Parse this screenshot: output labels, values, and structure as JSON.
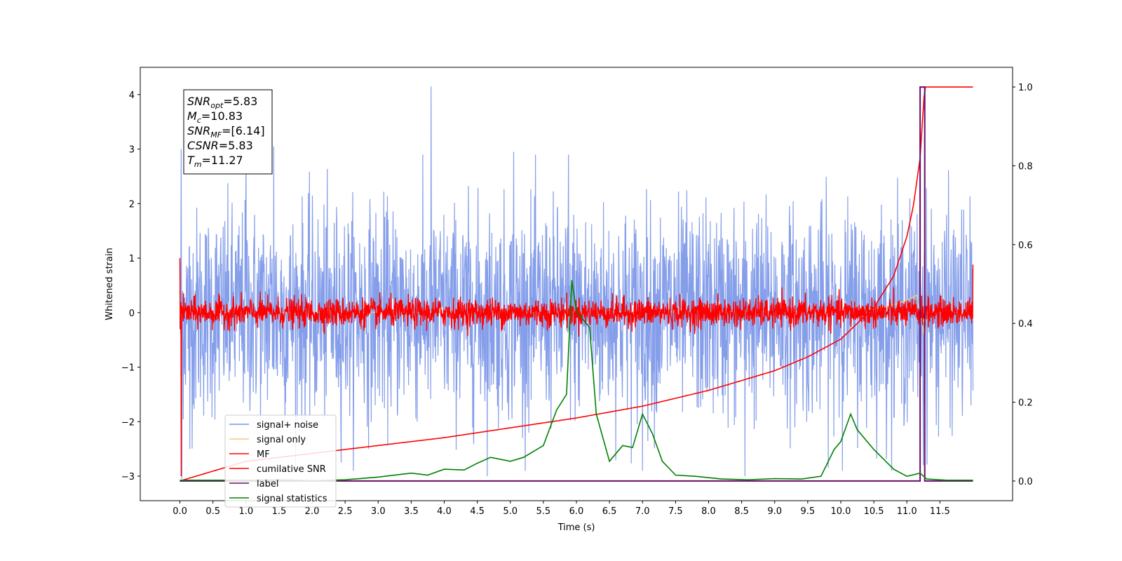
{
  "chart_data": {
    "type": "line",
    "title": "",
    "xlabel": "Time (s)",
    "ylabel": "Whitened strain",
    "y2label": "",
    "xlim": [
      -0.6,
      12.6
    ],
    "ylim": [
      -3.45,
      4.5
    ],
    "y2lim": [
      -0.05,
      1.05
    ],
    "x_ticks": [
      0.0,
      0.5,
      1.0,
      1.5,
      2.0,
      2.5,
      3.0,
      3.5,
      4.0,
      4.5,
      5.0,
      5.5,
      6.0,
      6.5,
      7.0,
      7.5,
      8.0,
      8.5,
      9.0,
      9.5,
      10.0,
      10.5,
      11.0,
      11.5
    ],
    "x_tick_labels": [
      "0.0",
      "0.5",
      "1.0",
      "1.5",
      "2.0",
      "2.5",
      "3.0",
      "3.5",
      "4.0",
      "4.5",
      "5.0",
      "5.5",
      "6.0",
      "6.5",
      "7.0",
      "7.5",
      "8.0",
      "8.5",
      "9.0",
      "9.5",
      "10.0",
      "10.5",
      "11.0",
      "11.5"
    ],
    "y_ticks": [
      -3,
      -2,
      -1,
      0,
      1,
      2,
      3,
      4
    ],
    "y_tick_labels": [
      "−3",
      "−2",
      "−1",
      "0",
      "1",
      "2",
      "3",
      "4"
    ],
    "y2_ticks": [
      0.0,
      0.2,
      0.4,
      0.6,
      0.8,
      1.0
    ],
    "y2_tick_labels": [
      "0.0",
      "0.2",
      "0.4",
      "0.6",
      "0.8",
      "1.0"
    ],
    "grid": false,
    "legend_position": "lower-left",
    "annotation": {
      "lines": [
        {
          "base": "SNR",
          "sub": "opt",
          "value": "=5.83"
        },
        {
          "base": "M",
          "sub": "c",
          "value": "=10.83"
        },
        {
          "base": "SNR",
          "sub": "MF",
          "value": "=[6.14]"
        },
        {
          "base": "CSNR",
          "sub": "",
          "value": "=5.83"
        },
        {
          "base": "T",
          "sub": "m",
          "value": "=11.27"
        }
      ]
    },
    "series": [
      {
        "name": "signal+ noise",
        "axis": "left",
        "color": "#7893e8",
        "x_range": [
          0.0,
          12.0
        ],
        "amplitude_typical": 1.3,
        "extremes": [
          {
            "x": 0.02,
            "y": 3.0
          },
          {
            "x": 0.03,
            "y": -3.05
          },
          {
            "x": 0.15,
            "y": -2.5
          },
          {
            "x": 1.0,
            "y": 3.0
          },
          {
            "x": 1.42,
            "y": 3.05
          },
          {
            "x": 3.8,
            "y": 4.15
          },
          {
            "x": 4.65,
            "y": -3.0
          },
          {
            "x": 5.05,
            "y": 2.95
          },
          {
            "x": 5.88,
            "y": 2.9
          },
          {
            "x": 7.0,
            "y": -2.9
          },
          {
            "x": 8.55,
            "y": -3.0
          },
          {
            "x": 11.2,
            "y": 2.85
          },
          {
            "x": 11.25,
            "y": -2.8
          }
        ]
      },
      {
        "name": "signal only",
        "axis": "left",
        "color": "#f5c87a",
        "points": [
          [
            0.0,
            0.0
          ],
          [
            10.0,
            0.02
          ],
          [
            10.6,
            0.08
          ],
          [
            11.0,
            0.22
          ],
          [
            11.15,
            0.32
          ],
          [
            11.27,
            -0.45
          ],
          [
            11.3,
            0.0
          ],
          [
            12.0,
            0.0
          ]
        ]
      },
      {
        "name": "MF",
        "axis": "left",
        "color": "#ff0000",
        "amplitude_typical": 0.22,
        "peaks": [
          {
            "x": 0.0,
            "y": 1.0
          },
          {
            "x": 0.03,
            "y": -3.0
          },
          {
            "x": 12.0,
            "y": 0.88
          }
        ]
      },
      {
        "name": "cumilative SNR",
        "axis": "right",
        "color": "#ff0000",
        "points": [
          [
            0.0,
            0.0
          ],
          [
            1.0,
            0.05
          ],
          [
            2.0,
            0.07
          ],
          [
            3.0,
            0.09
          ],
          [
            4.0,
            0.11
          ],
          [
            5.0,
            0.135
          ],
          [
            6.0,
            0.16
          ],
          [
            7.0,
            0.19
          ],
          [
            8.0,
            0.23
          ],
          [
            9.0,
            0.28
          ],
          [
            9.5,
            0.315
          ],
          [
            10.0,
            0.36
          ],
          [
            10.5,
            0.44
          ],
          [
            10.8,
            0.52
          ],
          [
            11.0,
            0.62
          ],
          [
            11.1,
            0.7
          ],
          [
            11.2,
            0.82
          ],
          [
            11.27,
            1.0
          ],
          [
            12.0,
            1.0
          ]
        ]
      },
      {
        "name": "label",
        "axis": "right",
        "color": "#6a0c6a",
        "points": [
          [
            0.0,
            0.0
          ],
          [
            11.2,
            0.0
          ],
          [
            11.2,
            1.0
          ],
          [
            11.27,
            1.0
          ],
          [
            11.27,
            0.0
          ],
          [
            12.0,
            0.0
          ]
        ]
      },
      {
        "name": "signal statistics",
        "axis": "right",
        "color": "#008000",
        "points": [
          [
            0.0,
            0.002
          ],
          [
            1.0,
            0.002
          ],
          [
            1.5,
            0.003
          ],
          [
            2.0,
            0.001
          ],
          [
            2.5,
            0.003
          ],
          [
            3.0,
            0.01
          ],
          [
            3.5,
            0.02
          ],
          [
            3.75,
            0.015
          ],
          [
            4.0,
            0.03
          ],
          [
            4.3,
            0.028
          ],
          [
            4.5,
            0.045
          ],
          [
            4.7,
            0.06
          ],
          [
            5.0,
            0.05
          ],
          [
            5.2,
            0.06
          ],
          [
            5.5,
            0.09
          ],
          [
            5.7,
            0.18
          ],
          [
            5.85,
            0.22
          ],
          [
            5.93,
            0.51
          ],
          [
            6.0,
            0.43
          ],
          [
            6.2,
            0.39
          ],
          [
            6.3,
            0.17
          ],
          [
            6.5,
            0.05
          ],
          [
            6.7,
            0.09
          ],
          [
            6.85,
            0.085
          ],
          [
            7.0,
            0.17
          ],
          [
            7.15,
            0.12
          ],
          [
            7.3,
            0.05
          ],
          [
            7.5,
            0.015
          ],
          [
            7.8,
            0.012
          ],
          [
            8.2,
            0.005
          ],
          [
            8.6,
            0.003
          ],
          [
            9.0,
            0.006
          ],
          [
            9.4,
            0.005
          ],
          [
            9.7,
            0.012
          ],
          [
            9.9,
            0.08
          ],
          [
            10.0,
            0.1
          ],
          [
            10.15,
            0.17
          ],
          [
            10.25,
            0.13
          ],
          [
            10.5,
            0.08
          ],
          [
            10.8,
            0.03
          ],
          [
            11.0,
            0.012
          ],
          [
            11.2,
            0.02
          ],
          [
            11.3,
            0.005
          ],
          [
            11.6,
            0.002
          ],
          [
            12.0,
            0.002
          ]
        ]
      }
    ]
  }
}
